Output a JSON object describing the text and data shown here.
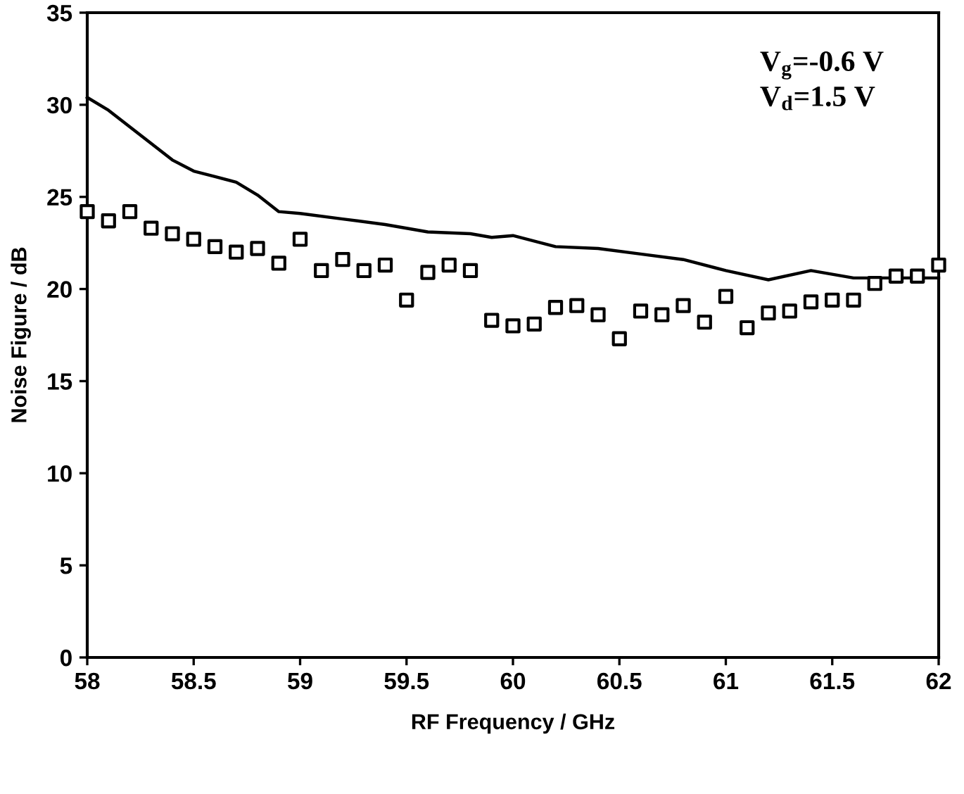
{
  "chart_data": {
    "type": "line",
    "xlabel": "RF Frequency / GHz",
    "ylabel": "Noise Figure / dB",
    "annotations": [
      "V$_{g}$=-0.6 V\nV$_{d}$=1.5 V"
    ],
    "xlim": [
      58,
      62
    ],
    "xticks": [
      58,
      58.5,
      59,
      59.5,
      60,
      60.5,
      61,
      61.5,
      62
    ],
    "ylim": [
      0,
      35
    ],
    "yticks": [
      0,
      5,
      10,
      15,
      20,
      25,
      30,
      35
    ],
    "grid": false,
    "legend": false,
    "series": [
      {
        "color": "#000000",
        "marker": "none",
        "line_style": "solid",
        "x": [
          58,
          58.1,
          58.2,
          58.3,
          58.4,
          58.5,
          58.6,
          58.7,
          58.8,
          58.9,
          59.0,
          59.2,
          59.4,
          59.6,
          59.8,
          59.9,
          60.0,
          60.2,
          60.4,
          60.6,
          60.8,
          61.0,
          61.2,
          61.4,
          61.6,
          61.8,
          62
        ],
        "values": [
          30.4,
          29.7,
          28.8,
          27.9,
          27.0,
          26.4,
          26.1,
          25.8,
          25.1,
          24.2,
          24.1,
          23.8,
          23.5,
          23.1,
          23.0,
          22.8,
          22.9,
          22.3,
          22.2,
          21.9,
          21.6,
          21.0,
          20.5,
          21.0,
          20.6,
          20.6,
          20.6
        ]
      },
      {
        "type": "scatter",
        "color": "#000000",
        "marker": "square",
        "x": [
          58,
          58.1,
          58.2,
          58.3,
          58.4,
          58.5,
          58.6,
          58.7,
          58.8,
          58.9,
          59.0,
          59.1,
          59.2,
          59.3,
          59.4,
          59.5,
          59.6,
          59.7,
          59.8,
          59.9,
          60.0,
          60.1,
          60.2,
          60.3,
          60.4,
          60.5,
          60.6,
          60.7,
          60.8,
          60.9,
          61.0,
          61.1,
          61.2,
          61.3,
          61.4,
          61.5,
          61.6,
          61.7,
          61.8,
          61.9,
          62
        ],
        "values": [
          24.2,
          23.7,
          24.2,
          23.3,
          23.0,
          22.7,
          22.3,
          22.0,
          22.2,
          21.4,
          22.7,
          21.0,
          21.6,
          21.0,
          21.3,
          19.4,
          20.9,
          21.3,
          21.0,
          18.3,
          18.0,
          18.1,
          19.0,
          19.1,
          18.6,
          17.3,
          18.8,
          18.6,
          19.1,
          18.2,
          19.6,
          17.9,
          18.7,
          18.8,
          19.3,
          19.4,
          19.4,
          20.3,
          20.7,
          20.7,
          21.3
        ]
      }
    ]
  }
}
